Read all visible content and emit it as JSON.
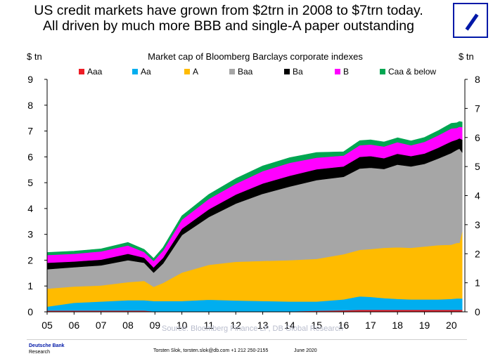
{
  "headline": {
    "line1": "US credit markets have grown from $2trn in 2008 to $7trn today.",
    "line2": "All driven by much more BBB and single-A paper outstanding"
  },
  "logo": {
    "icon": "deutsche-bank-slash-logo",
    "color": "#0018A8"
  },
  "footer": {
    "brand": "Deutsche Bank",
    "brand_sub": "Research",
    "source": "Source: Bloomberg Finance LP, DB Global Research",
    "contact": "Torsten Slok, torsten.slok@db.com  +1 212 250-2155",
    "date": "June 2020"
  },
  "chart_data": {
    "type": "area",
    "stacked": true,
    "title": "Market cap of Bloomberg Barclays corporate indexes",
    "ylabel_left": "$ tn",
    "ylabel_right": "$ tn",
    "ylim_left": [
      0,
      9
    ],
    "ylim_right": [
      0,
      8
    ],
    "yticks_left": [
      0,
      1,
      2,
      3,
      4,
      5,
      6,
      7,
      8,
      9
    ],
    "yticks_right": [
      0,
      1,
      2,
      3,
      4,
      5,
      6,
      7,
      8
    ],
    "xlim": [
      2005,
      2020.5
    ],
    "xticks": [
      "05",
      "06",
      "07",
      "08",
      "09",
      "10",
      "11",
      "12",
      "13",
      "14",
      "15",
      "16",
      "17",
      "18",
      "19",
      "20"
    ],
    "x": [
      2005.0,
      2006.0,
      2007.0,
      2008.0,
      2008.6,
      2008.95,
      2009.3,
      2010.0,
      2011.0,
      2012.0,
      2013.0,
      2014.0,
      2015.0,
      2016.0,
      2016.6,
      2017.0,
      2017.5,
      2018.0,
      2018.5,
      2019.0,
      2019.5,
      2020.0,
      2020.2,
      2020.3,
      2020.4
    ],
    "series": [
      {
        "name": "Aaa",
        "color": "#ee1c25",
        "values": [
          0.05,
          0.05,
          0.05,
          0.05,
          0.05,
          0.02,
          0.02,
          0.02,
          0.02,
          0.02,
          0.02,
          0.02,
          0.04,
          0.06,
          0.08,
          0.08,
          0.08,
          0.08,
          0.08,
          0.08,
          0.08,
          0.08,
          0.08,
          0.08,
          0.08
        ]
      },
      {
        "name": "Aa",
        "color": "#00aeef",
        "values": [
          0.15,
          0.3,
          0.35,
          0.4,
          0.4,
          0.4,
          0.4,
          0.4,
          0.45,
          0.42,
          0.4,
          0.38,
          0.36,
          0.42,
          0.52,
          0.5,
          0.45,
          0.42,
          0.4,
          0.4,
          0.4,
          0.42,
          0.44,
          0.44,
          0.44
        ]
      },
      {
        "name": "A",
        "color": "#ffbb00",
        "values": [
          0.7,
          0.63,
          0.62,
          0.7,
          0.75,
          0.55,
          0.7,
          1.1,
          1.35,
          1.5,
          1.55,
          1.6,
          1.65,
          1.75,
          1.8,
          1.85,
          1.95,
          2.0,
          2.0,
          2.05,
          2.1,
          2.1,
          2.15,
          2.15,
          2.6
        ]
      },
      {
        "name": "Baa",
        "color": "#a6a6a6",
        "values": [
          0.75,
          0.75,
          0.78,
          0.85,
          0.7,
          0.55,
          0.75,
          1.45,
          1.85,
          2.25,
          2.6,
          2.85,
          3.05,
          3.0,
          3.15,
          3.15,
          3.05,
          3.2,
          3.15,
          3.2,
          3.35,
          3.55,
          3.6,
          3.65,
          3.05
        ]
      },
      {
        "name": "Ba",
        "color": "#000000",
        "values": [
          0.25,
          0.22,
          0.22,
          0.25,
          0.2,
          0.2,
          0.22,
          0.25,
          0.3,
          0.35,
          0.4,
          0.42,
          0.42,
          0.4,
          0.45,
          0.45,
          0.42,
          0.42,
          0.4,
          0.4,
          0.42,
          0.45,
          0.4,
          0.4,
          0.5
        ]
      },
      {
        "name": "B",
        "color": "#ff00ff",
        "values": [
          0.3,
          0.3,
          0.32,
          0.32,
          0.22,
          0.25,
          0.28,
          0.35,
          0.4,
          0.42,
          0.48,
          0.5,
          0.45,
          0.42,
          0.45,
          0.45,
          0.45,
          0.45,
          0.42,
          0.45,
          0.48,
          0.5,
          0.45,
          0.45,
          0.48
        ]
      },
      {
        "name": "Caa & below",
        "color": "#00a651",
        "values": [
          0.1,
          0.1,
          0.1,
          0.12,
          0.1,
          0.1,
          0.12,
          0.15,
          0.18,
          0.2,
          0.2,
          0.2,
          0.2,
          0.15,
          0.18,
          0.18,
          0.18,
          0.17,
          0.17,
          0.17,
          0.18,
          0.2,
          0.2,
          0.2,
          0.2
        ]
      }
    ]
  }
}
